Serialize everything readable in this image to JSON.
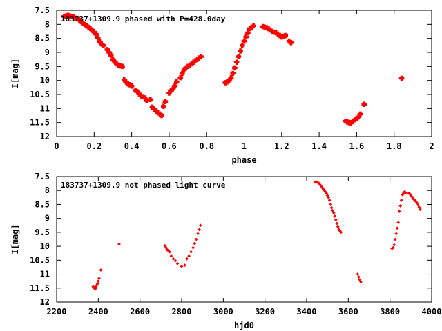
{
  "chart_data": [
    {
      "type": "scatter",
      "title": "183737+1309.9 phased with P=428.0day",
      "xlabel": "phase",
      "ylabel": "I[mag]",
      "xlim": [
        0,
        2
      ],
      "ylim": [
        7.5,
        12
      ],
      "y_inverted": true,
      "grid": false,
      "x_ticks": [
        {
          "v": 0,
          "label": "0"
        },
        {
          "v": 0.2,
          "label": "0.2"
        },
        {
          "v": 0.4,
          "label": "0.4"
        },
        {
          "v": 0.6,
          "label": "0.6"
        },
        {
          "v": 0.8,
          "label": "0.8"
        },
        {
          "v": 1,
          "label": "1"
        },
        {
          "v": 1.2,
          "label": "1.2"
        },
        {
          "v": 1.4,
          "label": "1.4"
        },
        {
          "v": 1.6,
          "label": "1.6"
        },
        {
          "v": 1.8,
          "label": "1.8"
        },
        {
          "v": 2,
          "label": "2"
        }
      ],
      "y_ticks": [
        {
          "v": 7.5,
          "label": "7.5"
        },
        {
          "v": 8,
          "label": "8"
        },
        {
          "v": 8.5,
          "label": "8.5"
        },
        {
          "v": 9,
          "label": "9"
        },
        {
          "v": 9.5,
          "label": "9.5"
        },
        {
          "v": 10,
          "label": "10"
        },
        {
          "v": 10.5,
          "label": "10.5"
        },
        {
          "v": 11,
          "label": "11"
        },
        {
          "v": 11.5,
          "label": "11.5"
        },
        {
          "v": 12,
          "label": "12"
        }
      ],
      "marker_color": "#ff0000",
      "series": [
        {
          "x": [
            0.04,
            0.05,
            0.06,
            0.07,
            0.08,
            0.09,
            0.1,
            0.11,
            0.12,
            0.13,
            0.14,
            0.15,
            0.16,
            0.17,
            0.18,
            0.19,
            0.2,
            0.21,
            0.22,
            0.23,
            0.24,
            0.25,
            0.27,
            0.28,
            0.29,
            0.3,
            0.31,
            0.32,
            0.33,
            0.34,
            0.35,
            0.36,
            0.37,
            0.38,
            0.39,
            0.4,
            0.42,
            0.43,
            0.44,
            0.45,
            0.47,
            0.48,
            0.5,
            0.51,
            0.52,
            0.53,
            0.54,
            0.55,
            0.56,
            0.57,
            0.58,
            0.6,
            0.61,
            0.62,
            0.63,
            0.64,
            0.66,
            0.67,
            0.68,
            0.69,
            0.7,
            0.71,
            0.72,
            0.73,
            0.74,
            0.75,
            0.76,
            0.77,
            0.9,
            0.91,
            0.92,
            0.93,
            0.94,
            0.95,
            0.96,
            0.97,
            0.98,
            0.99,
            1.0,
            1.01,
            1.02,
            1.03,
            1.04,
            1.05,
            1.1,
            1.11,
            1.12,
            1.13,
            1.14,
            1.15,
            1.16,
            1.17,
            1.18,
            1.19,
            1.2,
            1.21,
            1.22,
            1.24,
            1.25,
            1.54,
            1.55,
            1.56,
            1.57,
            1.58,
            1.59,
            1.6,
            1.61,
            1.62,
            1.64,
            1.84
          ],
          "y": [
            7.72,
            7.7,
            7.68,
            7.7,
            7.72,
            7.74,
            7.78,
            7.8,
            7.84,
            7.9,
            7.95,
            8.0,
            8.06,
            8.1,
            8.15,
            8.2,
            8.28,
            8.35,
            8.48,
            8.62,
            8.7,
            8.75,
            8.9,
            9.0,
            9.1,
            9.25,
            9.32,
            9.4,
            9.45,
            9.48,
            9.5,
            9.98,
            10.05,
            10.12,
            10.15,
            10.2,
            10.35,
            10.4,
            10.48,
            10.55,
            10.62,
            10.72,
            10.68,
            10.95,
            11.02,
            11.08,
            11.15,
            11.2,
            11.25,
            10.92,
            10.75,
            10.45,
            10.35,
            10.3,
            10.2,
            10.05,
            9.9,
            9.75,
            9.62,
            9.55,
            9.5,
            9.45,
            9.4,
            9.35,
            9.3,
            9.25,
            9.2,
            9.15,
            10.08,
            10.05,
            10.0,
            9.9,
            9.75,
            9.55,
            9.35,
            9.15,
            8.95,
            8.75,
            8.6,
            8.45,
            8.3,
            8.15,
            8.1,
            8.05,
            8.08,
            8.1,
            8.12,
            8.15,
            8.2,
            8.25,
            8.28,
            8.3,
            8.35,
            8.4,
            8.45,
            8.42,
            8.4,
            8.6,
            8.65,
            11.45,
            11.48,
            11.5,
            11.52,
            11.45,
            11.4,
            11.35,
            11.3,
            11.2,
            10.85,
            9.92
          ]
        }
      ]
    },
    {
      "type": "scatter",
      "title": "183737+1309.9 not phased light curve",
      "xlabel": "hjd0",
      "ylabel": "I[mag]",
      "xlim": [
        2200,
        4000
      ],
      "ylim": [
        7.5,
        12
      ],
      "y_inverted": true,
      "grid": false,
      "x_ticks": [
        {
          "v": 2200,
          "label": "2200"
        },
        {
          "v": 2400,
          "label": "2400"
        },
        {
          "v": 2600,
          "label": "2600"
        },
        {
          "v": 2800,
          "label": "2800"
        },
        {
          "v": 3000,
          "label": "3000"
        },
        {
          "v": 3200,
          "label": "3200"
        },
        {
          "v": 3400,
          "label": "3400"
        },
        {
          "v": 3600,
          "label": "3600"
        },
        {
          "v": 3800,
          "label": "3800"
        },
        {
          "v": 4000,
          "label": "4000"
        }
      ],
      "y_ticks": [
        {
          "v": 7.5,
          "label": "7.5"
        },
        {
          "v": 8,
          "label": "8"
        },
        {
          "v": 8.5,
          "label": "8.5"
        },
        {
          "v": 9,
          "label": "9"
        },
        {
          "v": 9.5,
          "label": "9.5"
        },
        {
          "v": 10,
          "label": "10"
        },
        {
          "v": 10.5,
          "label": "10.5"
        },
        {
          "v": 11,
          "label": "11"
        },
        {
          "v": 11.5,
          "label": "11.5"
        },
        {
          "v": 12,
          "label": "12"
        }
      ],
      "marker_color": "#ff0000",
      "series": [
        {
          "x": [
            2375,
            2380,
            2383,
            2386,
            2389,
            2392,
            2396,
            2400,
            2404,
            2412,
            2500,
            2720,
            2725,
            2730,
            2735,
            2742,
            2750,
            2760,
            2770,
            2780,
            2800,
            2815,
            2825,
            2835,
            2845,
            2855,
            2862,
            2870,
            2878,
            2885,
            2890,
            3440,
            3445,
            3450,
            3455,
            3460,
            3465,
            3470,
            3475,
            3480,
            3485,
            3490,
            3495,
            3500,
            3505,
            3510,
            3515,
            3520,
            3525,
            3530,
            3535,
            3540,
            3545,
            3550,
            3555,
            3560,
            3565,
            3645,
            3650,
            3655,
            3660,
            3810,
            3815,
            3820,
            3825,
            3830,
            3835,
            3840,
            3845,
            3850,
            3855,
            3860,
            3865,
            3870,
            3875,
            3890,
            3895,
            3900,
            3905,
            3910,
            3915,
            3920,
            3925,
            3930,
            3935,
            3940,
            3945
          ],
          "y": [
            11.45,
            11.5,
            11.48,
            11.52,
            11.45,
            11.4,
            11.35,
            11.25,
            11.15,
            10.85,
            9.92,
            9.98,
            10.05,
            10.12,
            10.15,
            10.2,
            10.35,
            10.45,
            10.52,
            10.62,
            10.72,
            10.68,
            10.45,
            10.35,
            10.2,
            10.05,
            9.9,
            9.75,
            9.55,
            9.4,
            9.25,
            7.7,
            7.68,
            7.7,
            7.72,
            7.75,
            7.8,
            7.85,
            7.9,
            7.95,
            8.0,
            8.05,
            8.1,
            8.18,
            8.25,
            8.35,
            8.5,
            8.62,
            8.72,
            8.8,
            8.92,
            9.05,
            9.18,
            9.3,
            9.4,
            9.45,
            9.5,
            11.0,
            11.1,
            11.2,
            11.28,
            10.08,
            10.05,
            9.95,
            9.75,
            9.55,
            9.35,
            9.15,
            8.75,
            8.55,
            8.35,
            8.15,
            8.1,
            8.05,
            8.08,
            8.1,
            8.12,
            8.18,
            8.22,
            8.28,
            8.32,
            8.36,
            8.4,
            8.45,
            8.52,
            8.6,
            8.68
          ]
        }
      ]
    }
  ]
}
